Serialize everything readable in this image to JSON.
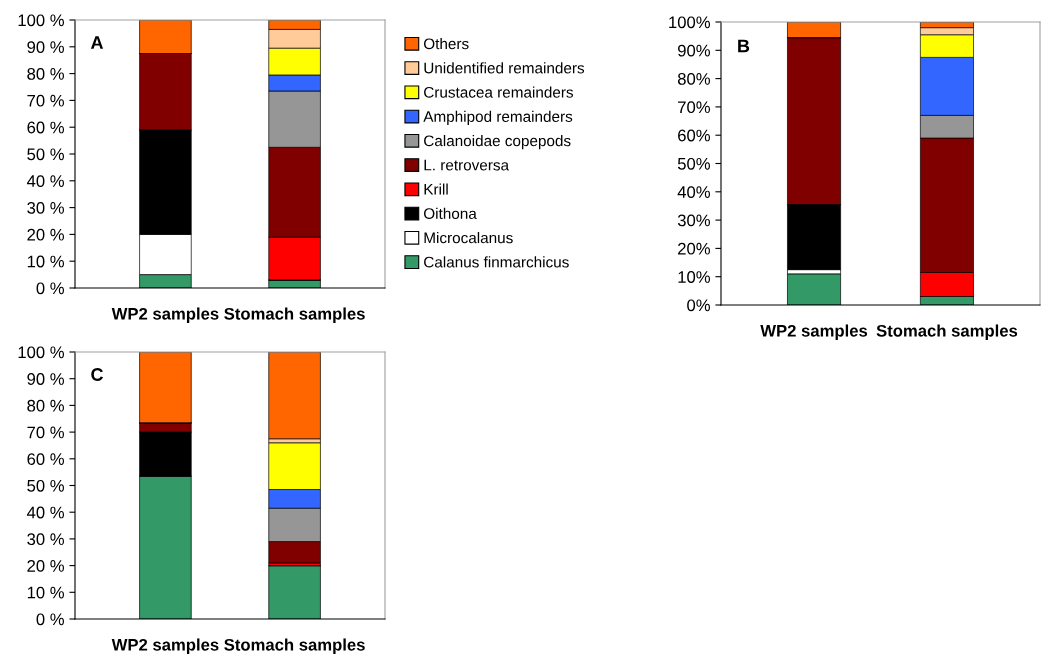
{
  "chart_data": [
    {
      "type": "bar",
      "stacked": true,
      "categories": [
        "WP2 samples",
        "Stomach samples"
      ],
      "annotations": [
        "A"
      ],
      "legend": "right",
      "ylim": [
        0,
        100
      ],
      "yticks": [
        {
          "value": 0,
          "label": "0 %"
        },
        {
          "value": 10,
          "label": "10 %"
        },
        {
          "value": 20,
          "label": "20 %"
        },
        {
          "value": 30,
          "label": "30 %"
        },
        {
          "value": 40,
          "label": "40 %"
        },
        {
          "value": 50,
          "label": "50 %"
        },
        {
          "value": 60,
          "label": "60 %"
        },
        {
          "value": 70,
          "label": "70 %"
        },
        {
          "value": 80,
          "label": "80 %"
        },
        {
          "value": 90,
          "label": "90 %"
        },
        {
          "value": 100,
          "label": "100 %"
        }
      ],
      "series": [
        {
          "name": "Calanus finmarchicus",
          "color": "#339966",
          "values": [
            5,
            3
          ]
        },
        {
          "name": "Microcalanus",
          "color": "#ffffff",
          "values": [
            15,
            0
          ]
        },
        {
          "name": "Oithona",
          "color": "#000000",
          "values": [
            39,
            0
          ]
        },
        {
          "name": "Krill",
          "color": "#ff0000",
          "values": [
            0,
            16
          ]
        },
        {
          "name": "L. retroversa",
          "color": "#800000",
          "values": [
            28.5,
            33.5
          ]
        },
        {
          "name": "Calanoidae copepods",
          "color": "#969696",
          "values": [
            0,
            21
          ]
        },
        {
          "name": "Amphipod remainders",
          "color": "#3366ff",
          "values": [
            0,
            6
          ]
        },
        {
          "name": "Crustacea remainders",
          "color": "#ffff00",
          "values": [
            0,
            10
          ]
        },
        {
          "name": "Unidentified remainders",
          "color": "#ffcc99",
          "values": [
            0,
            7
          ]
        },
        {
          "name": "Others",
          "color": "#ff6600",
          "values": [
            12.5,
            3.5
          ]
        }
      ]
    },
    {
      "type": "bar",
      "stacked": true,
      "categories": [
        "WP2 samples",
        "Stomach samples"
      ],
      "annotations": [
        "B"
      ],
      "ylim": [
        0,
        100
      ],
      "yticks": [
        {
          "value": 0,
          "label": "0%"
        },
        {
          "value": 10,
          "label": "10%"
        },
        {
          "value": 20,
          "label": "20%"
        },
        {
          "value": 30,
          "label": "30%"
        },
        {
          "value": 40,
          "label": "40%"
        },
        {
          "value": 50,
          "label": "50%"
        },
        {
          "value": 60,
          "label": "60%"
        },
        {
          "value": 70,
          "label": "70%"
        },
        {
          "value": 80,
          "label": "80%"
        },
        {
          "value": 90,
          "label": "90%"
        },
        {
          "value": 100,
          "label": "100%"
        }
      ],
      "series": [
        {
          "color": "#339966",
          "values": [
            11,
            3
          ]
        },
        {
          "color": "#ffffff",
          "values": [
            1.5,
            0
          ]
        },
        {
          "color": "#000000",
          "values": [
            23,
            0
          ]
        },
        {
          "color": "#ff0000",
          "values": [
            0,
            8.5
          ]
        },
        {
          "color": "#800000",
          "values": [
            59,
            47.5
          ]
        },
        {
          "color": "#969696",
          "values": [
            0,
            8
          ]
        },
        {
          "color": "#3366ff",
          "values": [
            0,
            20.5
          ]
        },
        {
          "color": "#ffff00",
          "values": [
            0,
            8
          ]
        },
        {
          "color": "#ffcc99",
          "values": [
            0,
            2.5
          ]
        },
        {
          "color": "#ff6600",
          "values": [
            5.5,
            2
          ]
        }
      ]
    },
    {
      "type": "bar",
      "stacked": true,
      "categories": [
        "WP2 samples",
        "Stomach samples"
      ],
      "annotations": [
        "C"
      ],
      "ylim": [
        0,
        100
      ],
      "yticks": [
        {
          "value": 0,
          "label": "0 %"
        },
        {
          "value": 10,
          "label": "10 %"
        },
        {
          "value": 20,
          "label": "20 %"
        },
        {
          "value": 30,
          "label": "30 %"
        },
        {
          "value": 40,
          "label": "40 %"
        },
        {
          "value": 50,
          "label": "50 %"
        },
        {
          "value": 60,
          "label": "60 %"
        },
        {
          "value": 70,
          "label": "70 %"
        },
        {
          "value": 80,
          "label": "80 %"
        },
        {
          "value": 90,
          "label": "90 %"
        },
        {
          "value": 100,
          "label": "100 %"
        }
      ],
      "series": [
        {
          "color": "#339966",
          "values": [
            53.5,
            20
          ]
        },
        {
          "color": "#ffffff",
          "values": [
            0,
            0
          ]
        },
        {
          "color": "#000000",
          "values": [
            16.5,
            0
          ]
        },
        {
          "color": "#ff0000",
          "values": [
            0,
            1
          ]
        },
        {
          "color": "#800000",
          "values": [
            3.5,
            8
          ]
        },
        {
          "color": "#969696",
          "values": [
            0,
            12.5
          ]
        },
        {
          "color": "#3366ff",
          "values": [
            0,
            7
          ]
        },
        {
          "color": "#ffff00",
          "values": [
            0,
            17.5
          ]
        },
        {
          "color": "#ffcc99",
          "values": [
            0,
            1.5
          ]
        },
        {
          "color": "#ff6600",
          "values": [
            26.5,
            32.5
          ]
        }
      ]
    }
  ]
}
